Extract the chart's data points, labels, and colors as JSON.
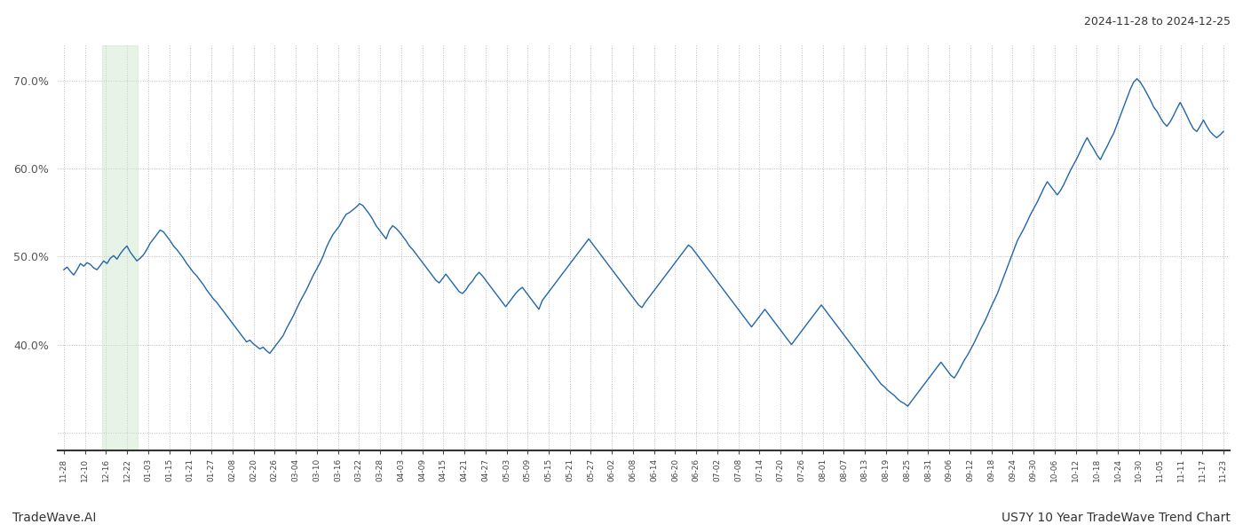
{
  "title_right": "2024-11-28 to 2024-12-25",
  "footer_left": "TradeWave.AI",
  "footer_right": "US7Y 10 Year TradeWave Trend Chart",
  "line_color": "#2266aa",
  "line_width": 1.0,
  "shade_color": "#c8e6c9",
  "shade_alpha": 0.45,
  "background_color": "#ffffff",
  "grid_color": "#bbbbbb",
  "grid_style": ":",
  "ylim": [
    28,
    74
  ],
  "ytick_vals": [
    30,
    40,
    50,
    60,
    70
  ],
  "ytick_labels": [
    "",
    "40.0%",
    "50.0%",
    "60.0%",
    "70.0%"
  ],
  "x_labels": [
    "11-28",
    "12-10",
    "12-16",
    "12-22",
    "01-03",
    "01-15",
    "01-21",
    "01-27",
    "02-08",
    "02-20",
    "02-26",
    "03-04",
    "03-10",
    "03-16",
    "03-22",
    "03-28",
    "04-03",
    "04-09",
    "04-15",
    "04-21",
    "04-27",
    "05-03",
    "05-09",
    "05-15",
    "05-21",
    "05-27",
    "06-02",
    "06-08",
    "06-14",
    "06-20",
    "06-26",
    "07-02",
    "07-08",
    "07-14",
    "07-20",
    "07-26",
    "08-01",
    "08-07",
    "08-13",
    "08-19",
    "08-25",
    "08-31",
    "09-06",
    "09-12",
    "09-18",
    "09-24",
    "09-30",
    "10-06",
    "10-12",
    "10-18",
    "10-24",
    "10-30",
    "11-05",
    "11-11",
    "11-17",
    "11-23"
  ],
  "shade_x_start_label": "12-16",
  "shade_x_end_label": "12-28",
  "y_values": [
    48.5,
    48.8,
    48.3,
    47.9,
    48.5,
    49.2,
    48.9,
    49.3,
    49.1,
    48.7,
    48.5,
    49.0,
    49.5,
    49.2,
    49.8,
    50.1,
    49.7,
    50.3,
    50.8,
    51.2,
    50.5,
    50.0,
    49.5,
    49.8,
    50.2,
    50.8,
    51.5,
    52.0,
    52.5,
    53.0,
    52.8,
    52.3,
    51.8,
    51.2,
    50.8,
    50.3,
    49.8,
    49.2,
    48.7,
    48.2,
    47.8,
    47.3,
    46.8,
    46.2,
    45.7,
    45.2,
    44.8,
    44.3,
    43.8,
    43.3,
    42.8,
    42.3,
    41.8,
    41.3,
    40.8,
    40.3,
    40.5,
    40.1,
    39.8,
    39.5,
    39.7,
    39.3,
    39.0,
    39.5,
    40.0,
    40.5,
    41.0,
    41.8,
    42.5,
    43.2,
    44.0,
    44.8,
    45.5,
    46.2,
    47.0,
    47.8,
    48.5,
    49.2,
    50.0,
    51.0,
    51.8,
    52.5,
    53.0,
    53.5,
    54.2,
    54.8,
    55.0,
    55.3,
    55.6,
    56.0,
    55.8,
    55.3,
    54.8,
    54.2,
    53.5,
    53.0,
    52.5,
    52.0,
    53.0,
    53.5,
    53.2,
    52.8,
    52.3,
    51.8,
    51.2,
    50.8,
    50.3,
    49.8,
    49.3,
    48.8,
    48.3,
    47.8,
    47.3,
    47.0,
    47.5,
    48.0,
    47.5,
    47.0,
    46.5,
    46.0,
    45.8,
    46.2,
    46.8,
    47.2,
    47.8,
    48.2,
    47.8,
    47.3,
    46.8,
    46.3,
    45.8,
    45.3,
    44.8,
    44.3,
    44.8,
    45.3,
    45.8,
    46.2,
    46.5,
    46.0,
    45.5,
    45.0,
    44.5,
    44.0,
    45.0,
    45.5,
    46.0,
    46.5,
    47.0,
    47.5,
    48.0,
    48.5,
    49.0,
    49.5,
    50.0,
    50.5,
    51.0,
    51.5,
    52.0,
    51.5,
    51.0,
    50.5,
    50.0,
    49.5,
    49.0,
    48.5,
    48.0,
    47.5,
    47.0,
    46.5,
    46.0,
    45.5,
    45.0,
    44.5,
    44.2,
    44.8,
    45.3,
    45.8,
    46.3,
    46.8,
    47.3,
    47.8,
    48.3,
    48.8,
    49.3,
    49.8,
    50.3,
    50.8,
    51.3,
    51.0,
    50.5,
    50.0,
    49.5,
    49.0,
    48.5,
    48.0,
    47.5,
    47.0,
    46.5,
    46.0,
    45.5,
    45.0,
    44.5,
    44.0,
    43.5,
    43.0,
    42.5,
    42.0,
    42.5,
    43.0,
    43.5,
    44.0,
    43.5,
    43.0,
    42.5,
    42.0,
    41.5,
    41.0,
    40.5,
    40.0,
    40.5,
    41.0,
    41.5,
    42.0,
    42.5,
    43.0,
    43.5,
    44.0,
    44.5,
    44.0,
    43.5,
    43.0,
    42.5,
    42.0,
    41.5,
    41.0,
    40.5,
    40.0,
    39.5,
    39.0,
    38.5,
    38.0,
    37.5,
    37.0,
    36.5,
    36.0,
    35.5,
    35.2,
    34.8,
    34.5,
    34.2,
    33.8,
    33.5,
    33.3,
    33.0,
    33.5,
    34.0,
    34.5,
    35.0,
    35.5,
    36.0,
    36.5,
    37.0,
    37.5,
    38.0,
    37.5,
    37.0,
    36.5,
    36.2,
    36.8,
    37.5,
    38.2,
    38.8,
    39.5,
    40.2,
    41.0,
    41.8,
    42.5,
    43.3,
    44.2,
    45.0,
    45.8,
    46.8,
    47.8,
    48.8,
    49.8,
    50.8,
    51.8,
    52.5,
    53.2,
    54.0,
    54.8,
    55.5,
    56.2,
    57.0,
    57.8,
    58.5,
    58.0,
    57.5,
    57.0,
    57.5,
    58.2,
    59.0,
    59.8,
    60.5,
    61.2,
    62.0,
    62.8,
    63.5,
    62.8,
    62.2,
    61.5,
    61.0,
    61.8,
    62.5,
    63.3,
    64.0,
    65.0,
    66.0,
    67.0,
    68.0,
    69.0,
    69.8,
    70.2,
    69.8,
    69.2,
    68.5,
    67.8,
    67.0,
    66.5,
    65.8,
    65.2,
    64.8,
    65.3,
    66.0,
    66.8,
    67.5,
    66.8,
    66.0,
    65.2,
    64.5,
    64.2,
    64.8,
    65.5,
    64.8,
    64.2,
    63.8,
    63.5,
    63.8,
    64.2
  ]
}
